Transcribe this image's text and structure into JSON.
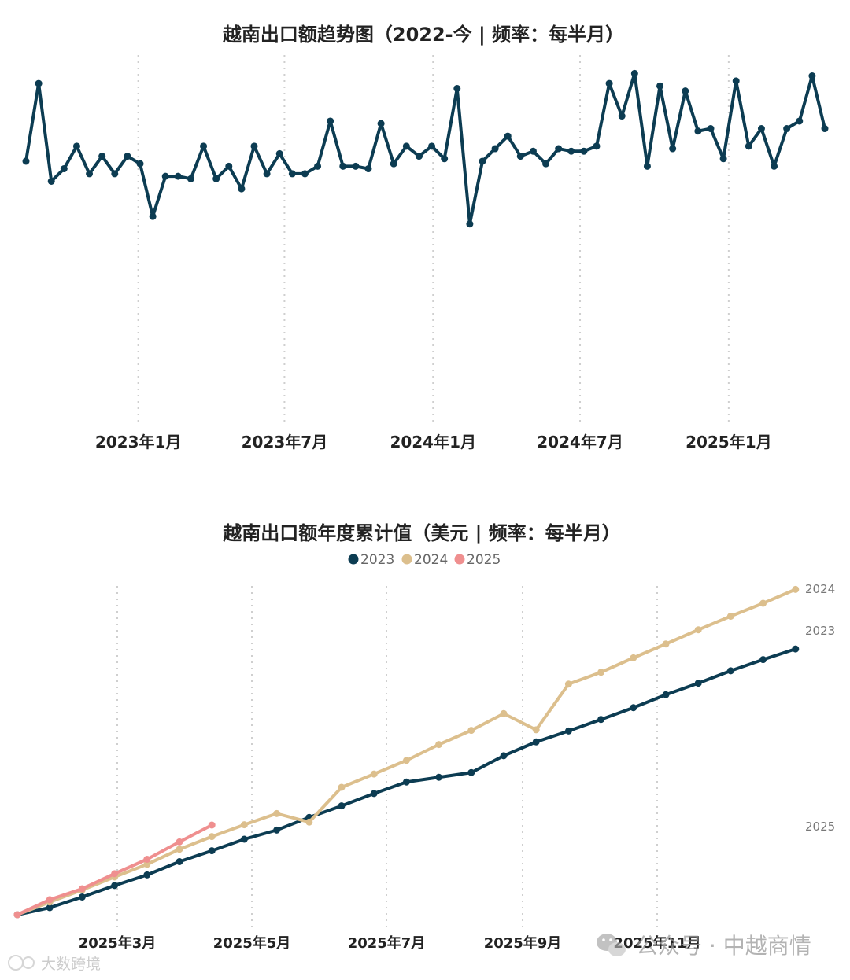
{
  "chart_data": [
    {
      "type": "line",
      "title": "越南出口额趋势图（2022-今 | 频率：每半月）",
      "xlabel": "",
      "ylabel": "",
      "tick_labels": [
        "2023年1月",
        "2023年7月",
        "2024年1月",
        "2024年7月",
        "2025年1月"
      ],
      "x_start": "2022-08-15",
      "x_end": "2025-04-30",
      "ylim": [
        0,
        100
      ],
      "grid": "vertical dotted",
      "series": [
        {
          "color": "#0c3c52",
          "values": [
            58,
            89,
            50,
            55,
            64,
            53,
            60,
            53,
            60,
            57,
            36,
            52,
            52,
            51,
            64,
            51,
            56,
            47,
            64,
            53,
            61,
            53,
            53,
            56,
            74,
            56,
            56,
            55,
            73,
            57,
            64,
            60,
            64,
            59,
            87,
            33,
            58,
            63,
            68,
            60,
            62,
            57,
            63,
            62,
            62,
            64,
            89,
            76,
            93,
            56,
            88,
            63,
            86,
            70,
            71,
            59,
            90,
            64,
            71,
            56,
            71,
            74,
            92,
            71
          ]
        }
      ]
    },
    {
      "type": "line",
      "title": "越南出口额年度累计值（美元 | 频率：每半月）",
      "xlabel": "",
      "ylabel": "",
      "tick_labels": [
        "2025年3月",
        "2025年5月",
        "2025年7月",
        "2025年9月",
        "2025年11月"
      ],
      "legend": "top-center",
      "grid": "vertical dotted",
      "series": [
        {
          "name": "2023",
          "color": "#0c3c52",
          "end_label": "2023",
          "values": [
            0,
            2.4,
            6,
            9.9,
            13.5,
            18,
            21.7,
            25.6,
            28.7,
            33,
            36.9,
            41.1,
            45,
            46.6,
            48.2,
            53.9,
            58.6,
            62.3,
            66.2,
            70.2,
            74.6,
            78.5,
            82.7,
            86.5,
            90.1
          ]
        },
        {
          "name": "2024",
          "color": "#dcbf8d",
          "end_label": "2024",
          "values": [
            0,
            4.3,
            8.4,
            12.8,
            17.1,
            22.2,
            26.5,
            30.5,
            34.3,
            31.4,
            43.2,
            47.7,
            52.3,
            57.7,
            62.5,
            68.2,
            62.7,
            78.2,
            82.2,
            87.1,
            91.8,
            96.6,
            101.2,
            105.6,
            110.3
          ]
        },
        {
          "name": "2025",
          "color": "#ef8f8f",
          "end_label": "2025",
          "values": [
            0,
            5.1,
            8.8,
            13.9,
            18.8,
            24.7,
            30.4
          ]
        }
      ]
    }
  ],
  "watermarks": {
    "wechat": "公众号 · 中越商情",
    "brand": "大数跨境"
  },
  "colors": {
    "navy": "#0c3c52",
    "tan": "#dcbf8d",
    "pink": "#ef8f8f"
  }
}
